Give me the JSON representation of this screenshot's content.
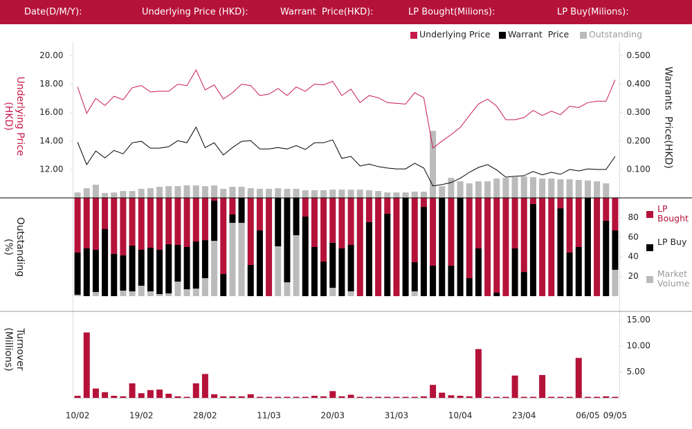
{
  "header": {
    "fields": [
      "Date(D/M/Y):",
      "Underlying Price (HKD):",
      "Warrant  Price(HKD):",
      "LP Bought(Milions):",
      "LP Buy(Milions):"
    ]
  },
  "chart_data": [
    {
      "type": "line",
      "y_label": "Underlying Price (HKD)",
      "y2_label": "Warrants  Price(HKD)",
      "ylim": [
        10,
        21
      ],
      "yticks": [
        {
          "value": 12,
          "label": "12.00"
        },
        {
          "value": 14,
          "label": "14.00"
        },
        {
          "value": 16,
          "label": "16.00"
        },
        {
          "value": 18,
          "label": "18.00"
        },
        {
          "value": 20,
          "label": "20.00"
        }
      ],
      "y2lim": [
        0,
        0.55
      ],
      "y2ticks": [
        {
          "value": 0.1,
          "label": "0.100"
        },
        {
          "value": 0.2,
          "label": "0.200"
        },
        {
          "value": 0.3,
          "label": "0.300"
        },
        {
          "value": 0.4,
          "label": "0.400"
        },
        {
          "value": 0.5,
          "label": "0.500"
        }
      ],
      "y3lim": [
        0,
        100
      ],
      "series": [
        {
          "name": "Underlying Price",
          "color": "#c8194c",
          "values": [
            17.8,
            15.95,
            17.0,
            16.5,
            17.15,
            16.9,
            17.75,
            17.9,
            17.45,
            17.5,
            17.5,
            18.0,
            17.9,
            19.0,
            17.6,
            17.95,
            16.95,
            17.4,
            18.0,
            17.9,
            17.2,
            17.3,
            17.7,
            17.2,
            17.8,
            17.5,
            18.0,
            17.95,
            18.2,
            17.2,
            17.65,
            16.7,
            17.2,
            17.05,
            16.7,
            16.65,
            16.6,
            17.4,
            17.05,
            13.5,
            14.0,
            14.45,
            14.95,
            15.8,
            16.6,
            16.95,
            16.45,
            15.5,
            15.5,
            15.65,
            16.15,
            15.8,
            16.1,
            15.85,
            16.45,
            16.35,
            16.7,
            16.8,
            16.8,
            18.3
          ]
        },
        {
          "name": "Warrant  Price",
          "color": "#000000",
          "axis": "y2",
          "values": [
            0.196,
            0.117,
            0.165,
            0.141,
            0.167,
            0.155,
            0.194,
            0.199,
            0.175,
            0.175,
            0.18,
            0.201,
            0.194,
            0.249,
            0.177,
            0.194,
            0.151,
            0.177,
            0.199,
            0.201,
            0.172,
            0.172,
            0.177,
            0.172,
            0.184,
            0.17,
            0.194,
            0.194,
            0.204,
            0.139,
            0.146,
            0.112,
            0.119,
            0.11,
            0.105,
            0.102,
            0.102,
            0.122,
            0.105,
            0.042,
            0.047,
            0.054,
            0.069,
            0.09,
            0.107,
            0.117,
            0.098,
            0.073,
            0.076,
            0.078,
            0.093,
            0.081,
            0.09,
            0.083,
            0.1,
            0.095,
            0.102,
            0.1,
            0.1,
            0.146
          ]
        },
        {
          "name": "Outstanding",
          "color": "#bbbbbb",
          "type": "bar",
          "axis": "y3",
          "values": [
            3.5,
            6.2,
            8.4,
            3.1,
            3.5,
            4.4,
            4.4,
            5.8,
            6.2,
            7.1,
            7.5,
            7.5,
            8.0,
            8.0,
            7.5,
            8.0,
            5.8,
            7.1,
            7.1,
            6.2,
            5.8,
            5.8,
            6.2,
            5.8,
            5.8,
            4.9,
            4.9,
            4.9,
            5.3,
            5.3,
            5.3,
            5.3,
            4.9,
            4.4,
            3.5,
            3.5,
            3.5,
            4.0,
            4.0,
            42.9,
            7.5,
            12.8,
            10.6,
            9.3,
            10.6,
            10.6,
            12.4,
            12.8,
            13.3,
            13.7,
            13.3,
            12.4,
            12.4,
            11.9,
            11.9,
            11.5,
            11.1,
            10.6,
            9.3,
            0
          ]
        }
      ]
    },
    {
      "type": "stacked_bar",
      "y_label": "Outstanding (%)",
      "ylim": [
        0,
        100
      ],
      "yticks": [
        20,
        40,
        60,
        80
      ],
      "series": [
        {
          "name": "LP Bought",
          "color": "#b5123a",
          "values": [
            55.6,
            51.4,
            52.8,
            31.7,
            57,
            58.5,
            48.6,
            52.8,
            50.7,
            52.8,
            47.2,
            47.9,
            50,
            44.4,
            43,
            2.8,
            77.5,
            16.9,
            0,
            68.3,
            33.1,
            100,
            0,
            0,
            0,
            19,
            50,
            64.8,
            45.7,
            51.4,
            47.9,
            100,
            24.6,
            100,
            16.2,
            100,
            0,
            65.5,
            9.2,
            69,
            0,
            69,
            0,
            81.7,
            51.4,
            100,
            96.5,
            100,
            51.4,
            75.4,
            6.3,
            100,
            100,
            10.6,
            55.6,
            50,
            0,
            100,
            23.2,
            33.1
          ]
        },
        {
          "name": "LP Buy",
          "color": "#000000",
          "values": [
            43,
            48.6,
            43,
            68.3,
            43,
            35.9,
            46.5,
            36.6,
            44.4,
            45.1,
            50,
            37.3,
            43,
            47.9,
            38.7,
            40.9,
            22.5,
            8.5,
            25.4,
            31.7,
            66.9,
            0,
            49.3,
            85.9,
            38,
            81,
            50,
            35.2,
            45.8,
            48.6,
            47.2,
            0,
            75.4,
            0,
            83.8,
            0,
            100,
            29.6,
            90.8,
            31,
            100,
            31,
            100,
            18.3,
            48.6,
            0,
            3.5,
            0,
            48.6,
            24.6,
            93.7,
            0,
            0,
            89.4,
            44.4,
            50,
            100,
            0,
            76.8,
            40.1
          ]
        },
        {
          "name": "Market Volume",
          "color": "#bbbbbb",
          "values": [
            1.4,
            0,
            4.2,
            0,
            0,
            5.6,
            4.9,
            10.6,
            4.9,
            2.1,
            2.8,
            14.8,
            7,
            7.7,
            18.3,
            56.3,
            0,
            74.6,
            74.6,
            0,
            0,
            0,
            50.7,
            14.1,
            62,
            0,
            0,
            0,
            8.5,
            0,
            4.9,
            0,
            0,
            0,
            0,
            0,
            0,
            4.9,
            0,
            0,
            0,
            0,
            0,
            0,
            0,
            0,
            0,
            0,
            0,
            0,
            0,
            0,
            0,
            0,
            0,
            0,
            0,
            0,
            0,
            26.8
          ]
        }
      ]
    },
    {
      "type": "bar",
      "y_label": "Turnover (Millions)",
      "ylim": [
        0,
        16
      ],
      "yticks": [
        {
          "value": 5,
          "label": "5.00"
        },
        {
          "value": 10,
          "label": "10.00"
        },
        {
          "value": 15,
          "label": "15.00"
        }
      ],
      "color": "#b5123a",
      "categories": [
        "10/02",
        null,
        null,
        null,
        null,
        null,
        null,
        "19/02",
        null,
        null,
        null,
        null,
        null,
        null,
        "28/02",
        null,
        null,
        null,
        null,
        null,
        null,
        "11/03",
        null,
        null,
        null,
        null,
        null,
        null,
        "20/03",
        null,
        null,
        null,
        null,
        null,
        null,
        "31/03",
        null,
        null,
        null,
        null,
        null,
        null,
        "10/04",
        null,
        null,
        null,
        null,
        null,
        null,
        "23/04",
        null,
        null,
        null,
        null,
        null,
        null,
        "06/05",
        null,
        null,
        "09/05"
      ],
      "values": [
        0.4,
        12.6,
        1.8,
        1.1,
        0.4,
        0.3,
        2.8,
        0.9,
        1.5,
        1.6,
        0.8,
        0.3,
        0.2,
        2.8,
        4.6,
        0.7,
        0.3,
        0.3,
        0.3,
        0.7,
        0.2,
        0.2,
        0.2,
        0.2,
        0.2,
        0.2,
        0.4,
        0.3,
        1.3,
        0.3,
        0.6,
        0.2,
        0.2,
        0.2,
        0.2,
        0.2,
        0.2,
        0.2,
        0.3,
        2.5,
        1.0,
        0.5,
        0.4,
        0.3,
        9.4,
        0.2,
        0.2,
        0.2,
        4.3,
        0.2,
        0.2,
        4.4,
        0.2,
        0.2,
        0.2,
        7.7,
        0.2,
        0.2,
        0.3,
        0.2
      ]
    }
  ]
}
